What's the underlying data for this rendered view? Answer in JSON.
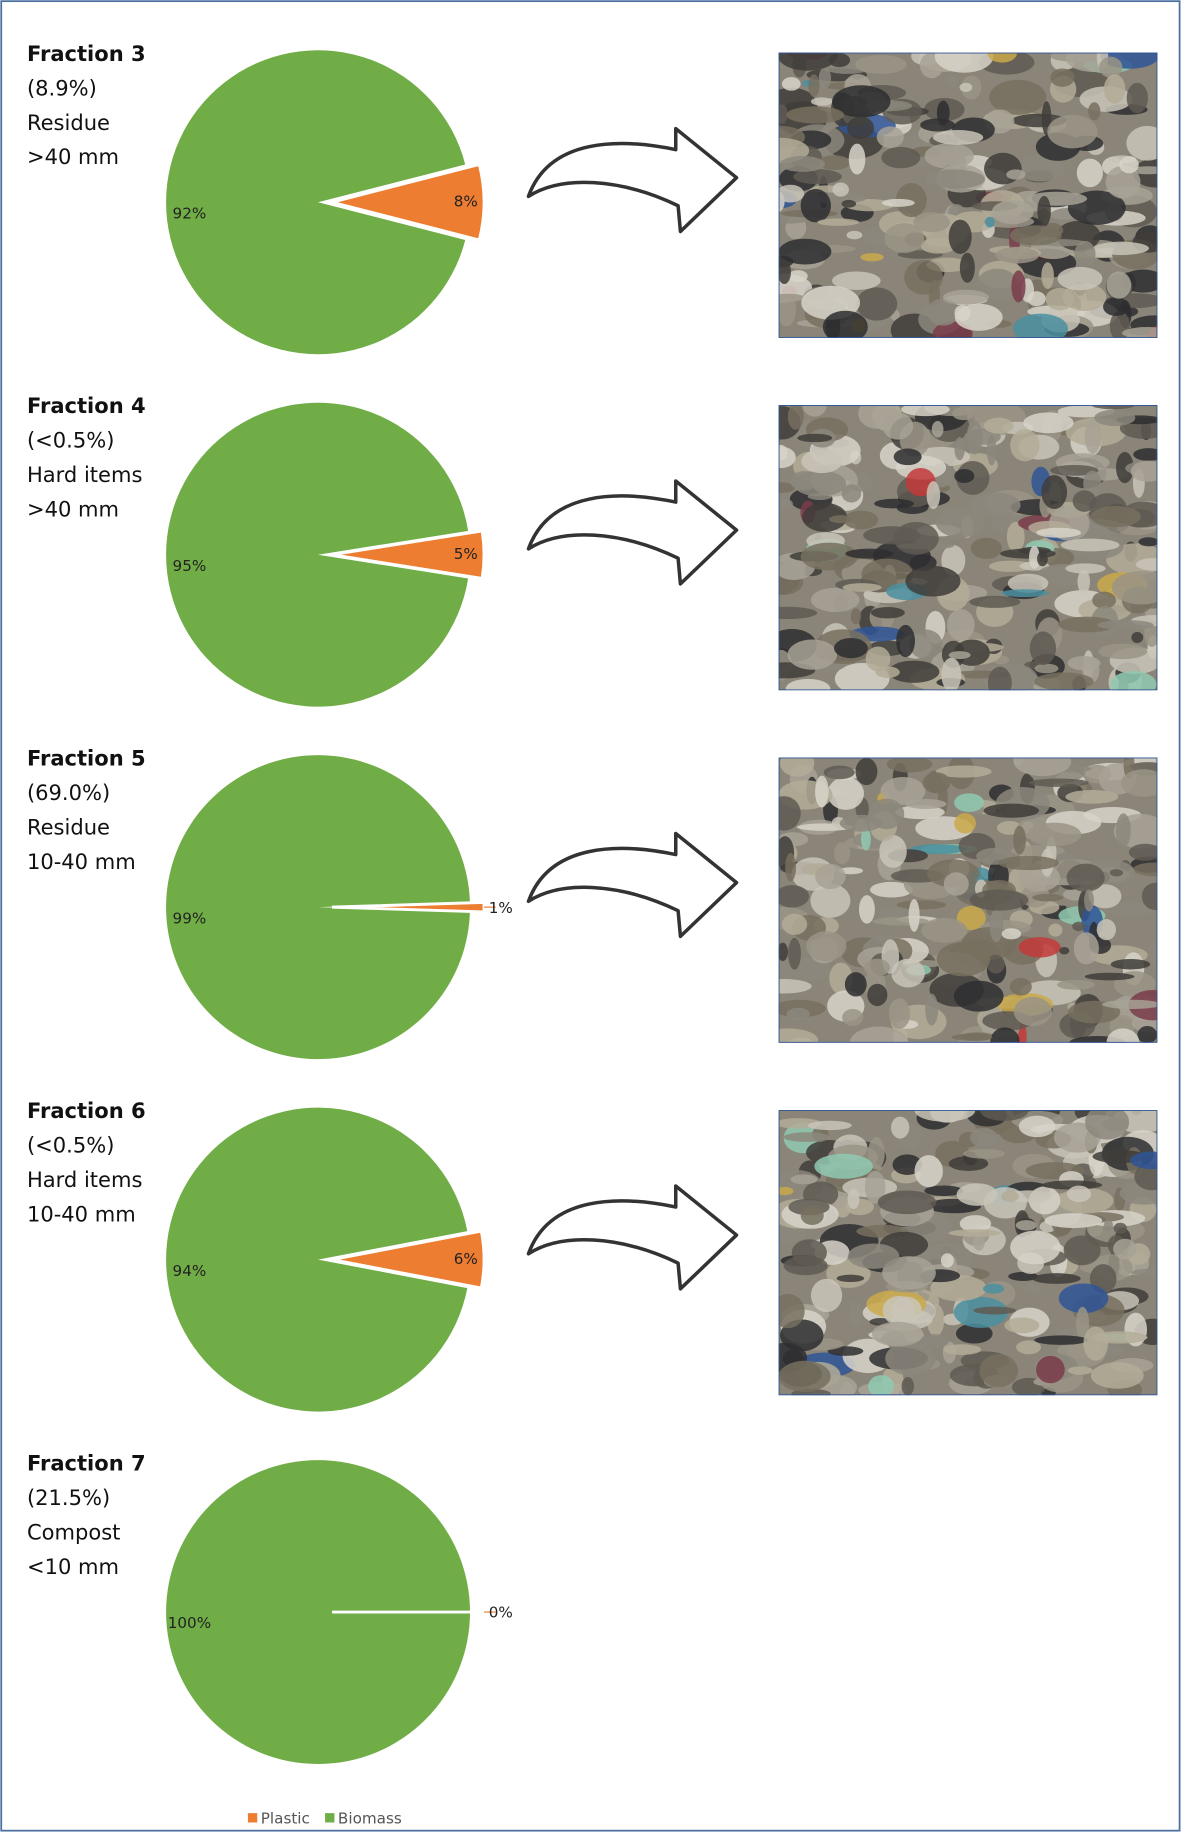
{
  "chart_data": [
    {
      "type": "pie",
      "title": "Fraction 3",
      "subtitle": [
        "(8.9%)",
        "Residue",
        ">40 mm"
      ],
      "categories": [
        "Plastic",
        "Biomass"
      ],
      "values": [
        8,
        92
      ],
      "value_labels": [
        "8%",
        "92%"
      ],
      "colors": [
        "#ed7d31",
        "#70ad47"
      ]
    },
    {
      "type": "pie",
      "title": "Fraction 4",
      "subtitle": [
        "(<0.5%)",
        "Hard items",
        ">40 mm"
      ],
      "categories": [
        "Plastic",
        "Biomass"
      ],
      "values": [
        5,
        95
      ],
      "value_labels": [
        "5%",
        "95%"
      ],
      "colors": [
        "#ed7d31",
        "#70ad47"
      ]
    },
    {
      "type": "pie",
      "title": "Fraction 5",
      "subtitle": [
        "(69.0%)",
        "Residue",
        "10-40 mm"
      ],
      "categories": [
        "Plastic",
        "Biomass"
      ],
      "values": [
        1,
        99
      ],
      "value_labels": [
        "1%",
        "99%"
      ],
      "colors": [
        "#ed7d31",
        "#70ad47"
      ]
    },
    {
      "type": "pie",
      "title": "Fraction 6",
      "subtitle": [
        "(<0.5%)",
        "Hard items",
        "10-40 mm"
      ],
      "categories": [
        "Plastic",
        "Biomass"
      ],
      "values": [
        6,
        94
      ],
      "value_labels": [
        "6%",
        "94%"
      ],
      "colors": [
        "#ed7d31",
        "#70ad47"
      ]
    },
    {
      "type": "pie",
      "title": "Fraction 7",
      "subtitle": [
        "(21.5%)",
        "Compost",
        "<10 mm"
      ],
      "categories": [
        "Plastic",
        "Biomass"
      ],
      "values": [
        0,
        100
      ],
      "value_labels": [
        "0%",
        "100%"
      ],
      "colors": [
        "#ed7d31",
        "#70ad47"
      ],
      "legend": "bottom"
    }
  ]
}
